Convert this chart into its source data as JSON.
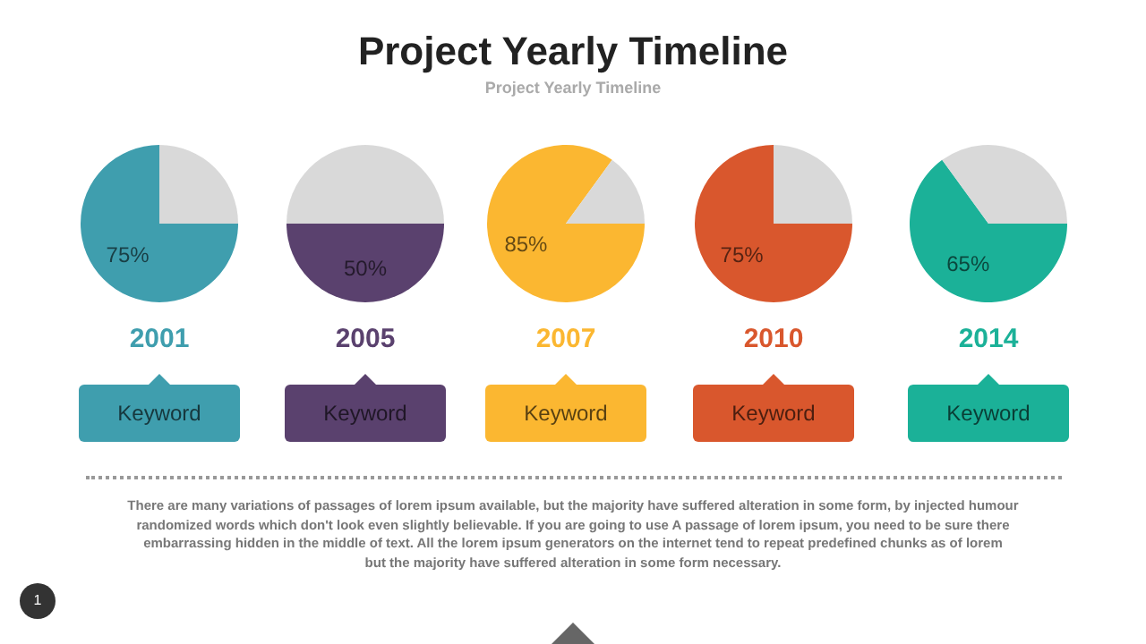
{
  "chart_data": [
    {
      "type": "other",
      "title": "Project Yearly Timeline",
      "subtitle": "Project Yearly Timeline",
      "annotations": [
        "There are many variations of passages of lorem ipsum available, but the majority have suffered alteration in some form, by injected humour randomized words which don't look even slightly believable. If you are going to use A passage of lorem ipsum, you need to be sure there embarrassing hidden in the middle of text. All the lorem ipsum generators on the internet tend to repeat predefined chunks as of lorem\nbut the majority have suffered alteration in some form  necessary.",
        "1"
      ]
    },
    {
      "type": "pie",
      "title": "2001",
      "categories": [
        null,
        null
      ],
      "values": [
        75,
        25
      ],
      "colors": [
        "#3f9eae",
        "#d9d9d9"
      ],
      "value_labels": [
        "75%",
        null
      ],
      "annotations": [
        "Keyword"
      ]
    },
    {
      "type": "pie",
      "title": "2005",
      "categories": [
        null,
        null
      ],
      "values": [
        50,
        50
      ],
      "colors": [
        "#5a416e",
        "#d9d9d9"
      ],
      "value_labels": [
        "50%",
        null
      ],
      "annotations": [
        "Keyword"
      ]
    },
    {
      "type": "pie",
      "title": "2007",
      "categories": [
        null,
        null
      ],
      "values": [
        85,
        15
      ],
      "colors": [
        "#fbb731",
        "#d9d9d9"
      ],
      "value_labels": [
        "85%",
        null
      ],
      "annotations": [
        "Keyword"
      ]
    },
    {
      "type": "pie",
      "title": "2010",
      "categories": [
        null,
        null
      ],
      "values": [
        75,
        25
      ],
      "colors": [
        "#d9572d",
        "#d9d9d9"
      ],
      "value_labels": [
        "75%",
        null
      ],
      "annotations": [
        "Keyword"
      ]
    },
    {
      "type": "pie",
      "title": "2014",
      "categories": [
        null,
        null
      ],
      "values": [
        65,
        35
      ],
      "colors": [
        "#1bb198",
        "#d9d9d9"
      ],
      "value_labels": [
        "65%",
        null
      ],
      "annotations": [
        "Keyword"
      ]
    }
  ]
}
